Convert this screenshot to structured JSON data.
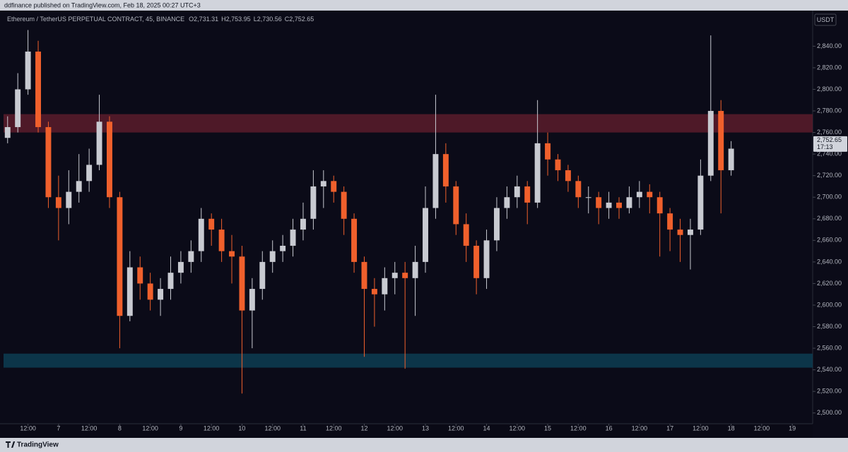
{
  "header": {
    "publisher": "ddfinance published on TradingView.com, Feb 18, 2025 00:27 UTC+3"
  },
  "footer": {
    "brand": "TradingView"
  },
  "chart_data": {
    "type": "candlestick",
    "title": "Ethereum / TetherUS PERPETUAL CONTRACT, 45, BINANCE",
    "ohlc_legend": [
      {
        "label": "O",
        "value": "2,731.31"
      },
      {
        "label": "H",
        "value": "2,753.95"
      },
      {
        "label": "L",
        "value": "2,730.56"
      },
      {
        "label": "C",
        "value": "2,752.65"
      }
    ],
    "currency": "USDT",
    "up_color": "#c8cad1",
    "down_color": "#f0602c",
    "x": [
      -20,
      -16,
      -12,
      -8,
      -4,
      0,
      4,
      8,
      12,
      16,
      20,
      24,
      28,
      32,
      36,
      40,
      44,
      48,
      52,
      56,
      60,
      64,
      68,
      72,
      76,
      80,
      84,
      88,
      92,
      96,
      100,
      104,
      108,
      112,
      116,
      120,
      124,
      128,
      132,
      136,
      140,
      144,
      148,
      152,
      156,
      160,
      164,
      168,
      172,
      176,
      180,
      184,
      188,
      192,
      196,
      200,
      204,
      208,
      212,
      216,
      220,
      224,
      228,
      232,
      236,
      240,
      244,
      248,
      252,
      256,
      260,
      264
    ],
    "open": [
      2755,
      2765,
      2800,
      2835,
      2765,
      2700,
      2690,
      2705,
      2715,
      2730,
      2770,
      2700,
      2590,
      2635,
      2620,
      2605,
      2615,
      2630,
      2640,
      2650,
      2680,
      2670,
      2650,
      2645,
      2595,
      2615,
      2640,
      2650,
      2655,
      2670,
      2680,
      2710,
      2715,
      2705,
      2680,
      2640,
      2615,
      2610,
      2625,
      2630,
      2625,
      2640,
      2690,
      2740,
      2710,
      2675,
      2655,
      2625,
      2660,
      2690,
      2700,
      2710,
      2695,
      2750,
      2735,
      2725,
      2715,
      2700,
      2700,
      2690,
      2695,
      2690,
      2700,
      2705,
      2700,
      2685,
      2670,
      2665,
      2670,
      2720,
      2780,
      2725
    ],
    "high": [
      2775,
      2815,
      2855,
      2845,
      2770,
      2720,
      2725,
      2740,
      2745,
      2795,
      2775,
      2705,
      2650,
      2645,
      2630,
      2625,
      2645,
      2650,
      2660,
      2690,
      2685,
      2680,
      2665,
      2655,
      2625,
      2650,
      2660,
      2665,
      2680,
      2695,
      2725,
      2725,
      2720,
      2710,
      2685,
      2645,
      2625,
      2635,
      2640,
      2640,
      2655,
      2710,
      2795,
      2750,
      2715,
      2685,
      2660,
      2670,
      2700,
      2710,
      2720,
      2715,
      2790,
      2760,
      2740,
      2730,
      2720,
      2710,
      2705,
      2705,
      2700,
      2710,
      2715,
      2712,
      2705,
      2690,
      2680,
      2680,
      2735,
      2850,
      2790,
      2752
    ],
    "low": [
      2750,
      2760,
      2795,
      2760,
      2690,
      2660,
      2675,
      2695,
      2705,
      2725,
      2690,
      2560,
      2585,
      2605,
      2595,
      2590,
      2605,
      2620,
      2630,
      2640,
      2655,
      2640,
      2620,
      2518,
      2560,
      2605,
      2630,
      2640,
      2645,
      2660,
      2670,
      2690,
      2695,
      2665,
      2630,
      2552,
      2580,
      2595,
      2610,
      2541,
      2590,
      2630,
      2680,
      2695,
      2665,
      2640,
      2610,
      2615,
      2650,
      2680,
      2690,
      2675,
      2690,
      2720,
      2715,
      2705,
      2690,
      2685,
      2675,
      2680,
      2680,
      2685,
      2690,
      2685,
      2645,
      2650,
      2640,
      2633,
      2665,
      2715,
      2685,
      2720
    ],
    "close": [
      2765,
      2800,
      2835,
      2765,
      2700,
      2690,
      2705,
      2715,
      2730,
      2770,
      2700,
      2590,
      2635,
      2620,
      2605,
      2615,
      2630,
      2640,
      2650,
      2680,
      2670,
      2650,
      2645,
      2595,
      2615,
      2640,
      2650,
      2655,
      2670,
      2680,
      2710,
      2715,
      2705,
      2680,
      2640,
      2615,
      2610,
      2625,
      2630,
      2625,
      2640,
      2690,
      2740,
      2710,
      2675,
      2655,
      2625,
      2660,
      2690,
      2700,
      2710,
      2695,
      2750,
      2735,
      2725,
      2715,
      2700,
      2700,
      2690,
      2695,
      2690,
      2700,
      2705,
      2700,
      2685,
      2670,
      2665,
      2670,
      2720,
      2780,
      2725,
      2745
    ],
    "zones": [
      {
        "from": 2760,
        "to": 2777,
        "color": "#5a1c2b"
      },
      {
        "from": 2542,
        "to": 2555,
        "color": "#0d3d52"
      }
    ],
    "last_price": {
      "value": 2752.65,
      "label": "2,752.65"
    },
    "countdown": "17:13",
    "xlim": [
      -21.6,
      296
    ],
    "ylim": [
      2490,
      2873
    ],
    "yticks": [
      {
        "value": 2500,
        "label": "2,500.00"
      },
      {
        "value": 2520,
        "label": "2,520.00"
      },
      {
        "value": 2540,
        "label": "2,540.00"
      },
      {
        "value": 2560,
        "label": "2,560.00"
      },
      {
        "value": 2580,
        "label": "2,580.00"
      },
      {
        "value": 2600,
        "label": "2,600.00"
      },
      {
        "value": 2620,
        "label": "2,620.00"
      },
      {
        "value": 2640,
        "label": "2,640.00"
      },
      {
        "value": 2660,
        "label": "2,660.00"
      },
      {
        "value": 2680,
        "label": "2,680.00"
      },
      {
        "value": 2700,
        "label": "2,700.00"
      },
      {
        "value": 2720,
        "label": "2,720.00"
      },
      {
        "value": 2740,
        "label": "2,740.00"
      },
      {
        "value": 2760,
        "label": "2,760.00"
      },
      {
        "value": 2780,
        "label": "2,780.00"
      },
      {
        "value": 2800,
        "label": "2,800.00"
      },
      {
        "value": 2820,
        "label": "2,820.00"
      },
      {
        "value": 2840,
        "label": "2,840.00"
      }
    ],
    "xticks": [
      {
        "value": -12,
        "label": "12:00"
      },
      {
        "value": 0,
        "label": "7"
      },
      {
        "value": 12,
        "label": "12:00"
      },
      {
        "value": 24,
        "label": "8"
      },
      {
        "value": 36,
        "label": "12:00"
      },
      {
        "value": 48,
        "label": "9"
      },
      {
        "value": 60,
        "label": "12:00"
      },
      {
        "value": 72,
        "label": "10"
      },
      {
        "value": 84,
        "label": "12:00"
      },
      {
        "value": 96,
        "label": "11"
      },
      {
        "value": 108,
        "label": "12:00"
      },
      {
        "value": 120,
        "label": "12"
      },
      {
        "value": 132,
        "label": "12:00"
      },
      {
        "value": 144,
        "label": "13"
      },
      {
        "value": 156,
        "label": "12:00"
      },
      {
        "value": 168,
        "label": "14"
      },
      {
        "value": 180,
        "label": "12:00"
      },
      {
        "value": 192,
        "label": "15"
      },
      {
        "value": 204,
        "label": "12:00"
      },
      {
        "value": 216,
        "label": "16"
      },
      {
        "value": 228,
        "label": "12:00"
      },
      {
        "value": 240,
        "label": "17"
      },
      {
        "value": 252,
        "label": "12:00"
      },
      {
        "value": 264,
        "label": "18"
      },
      {
        "value": 276,
        "label": "12:00"
      },
      {
        "value": 288,
        "label": "19"
      }
    ]
  }
}
